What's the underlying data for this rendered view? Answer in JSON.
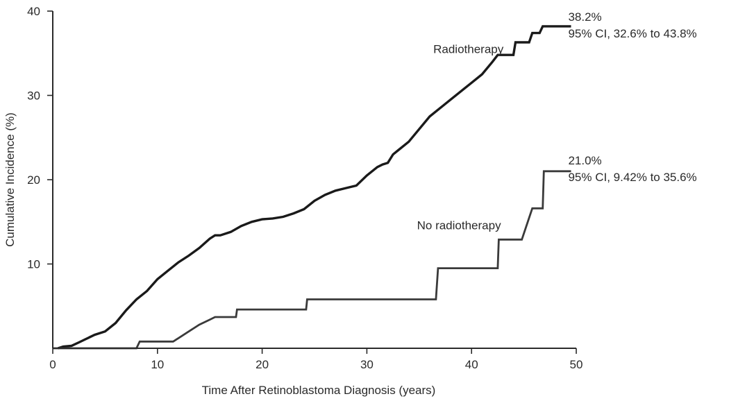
{
  "chart_data": {
    "type": "line",
    "step": true,
    "xlabel": "Time After Retinoblastoma Diagnosis (years)",
    "ylabel": "Cumulative Incidence (%)",
    "xlim": [
      0,
      50
    ],
    "ylim": [
      0,
      40
    ],
    "x_ticks": [
      {
        "value": 0,
        "label": "0"
      },
      {
        "value": 10,
        "label": "10"
      },
      {
        "value": 20,
        "label": "20"
      },
      {
        "value": 30,
        "label": "30"
      },
      {
        "value": 40,
        "label": "40"
      },
      {
        "value": 50,
        "label": "50"
      }
    ],
    "y_ticks": [
      {
        "value": 10,
        "label": "10"
      },
      {
        "value": 20,
        "label": "20"
      },
      {
        "value": 30,
        "label": "30"
      },
      {
        "value": 40,
        "label": "40"
      }
    ],
    "grid": false,
    "legend": "none",
    "series": [
      {
        "name": "Radiotherapy",
        "color": "#1a1a1a",
        "points": [
          [
            0.5,
            0
          ],
          [
            1,
            0.2
          ],
          [
            1.8,
            0.3
          ],
          [
            2.5,
            0.7
          ],
          [
            3,
            1
          ],
          [
            3.5,
            1.3
          ],
          [
            4,
            1.6
          ],
          [
            5,
            2
          ],
          [
            6,
            3
          ],
          [
            7,
            4.5
          ],
          [
            8,
            5.8
          ],
          [
            9,
            6.8
          ],
          [
            10,
            8.2
          ],
          [
            11,
            9.2
          ],
          [
            12,
            10.2
          ],
          [
            13,
            11
          ],
          [
            14,
            11.9
          ],
          [
            15,
            13
          ],
          [
            15.5,
            13.4
          ],
          [
            16,
            13.4
          ],
          [
            17,
            13.8
          ],
          [
            18,
            14.5
          ],
          [
            19,
            15
          ],
          [
            20,
            15.3
          ],
          [
            21,
            15.4
          ],
          [
            22,
            15.6
          ],
          [
            23,
            16
          ],
          [
            24,
            16.5
          ],
          [
            25,
            17.5
          ],
          [
            26,
            18.2
          ],
          [
            27,
            18.7
          ],
          [
            28,
            19
          ],
          [
            29,
            19.3
          ],
          [
            30,
            20.5
          ],
          [
            31,
            21.5
          ],
          [
            31.5,
            21.8
          ],
          [
            32,
            22
          ],
          [
            32.5,
            23
          ],
          [
            33,
            23.5
          ],
          [
            34,
            24.5
          ],
          [
            35,
            26
          ],
          [
            36,
            27.5
          ],
          [
            37,
            28.5
          ],
          [
            38,
            29.5
          ],
          [
            39,
            30.5
          ],
          [
            40,
            31.5
          ],
          [
            41,
            32.5
          ],
          [
            42,
            34
          ],
          [
            42.5,
            34.8
          ],
          [
            44,
            34.8
          ],
          [
            44.2,
            36.3
          ],
          [
            45.5,
            36.3
          ],
          [
            45.8,
            37.4
          ],
          [
            46.5,
            37.4
          ],
          [
            46.8,
            38.2
          ],
          [
            48,
            38.2
          ],
          [
            49.5,
            38.2
          ]
        ]
      },
      {
        "name": "No radiotherapy",
        "color": "#3a3a3a",
        "points": [
          [
            0,
            0
          ],
          [
            8,
            0
          ],
          [
            8.3,
            0.8
          ],
          [
            11.5,
            0.8
          ],
          [
            12,
            1.2
          ],
          [
            13,
            2
          ],
          [
            14,
            2.8
          ],
          [
            15,
            3.4
          ],
          [
            15.5,
            3.7
          ],
          [
            17.5,
            3.7
          ],
          [
            17.6,
            4.6
          ],
          [
            24.2,
            4.6
          ],
          [
            24.3,
            5.8
          ],
          [
            36.6,
            5.8
          ],
          [
            36.8,
            9.5
          ],
          [
            42.5,
            9.5
          ],
          [
            42.6,
            12.9
          ],
          [
            44.8,
            12.9
          ],
          [
            45.8,
            16.6
          ],
          [
            46.8,
            16.6
          ],
          [
            46.9,
            21.0
          ],
          [
            49.5,
            21.0
          ]
        ]
      }
    ],
    "annotations": {
      "radiotherapy_label": "Radiotherapy",
      "no_radiotherapy_label": "No radiotherapy",
      "radiotherapy_value": "38.2%",
      "radiotherapy_ci": "95% CI, 32.6% to 43.8%",
      "no_radiotherapy_value": "21.0%",
      "no_radiotherapy_ci": "95% CI, 9.42% to 35.6%"
    }
  }
}
